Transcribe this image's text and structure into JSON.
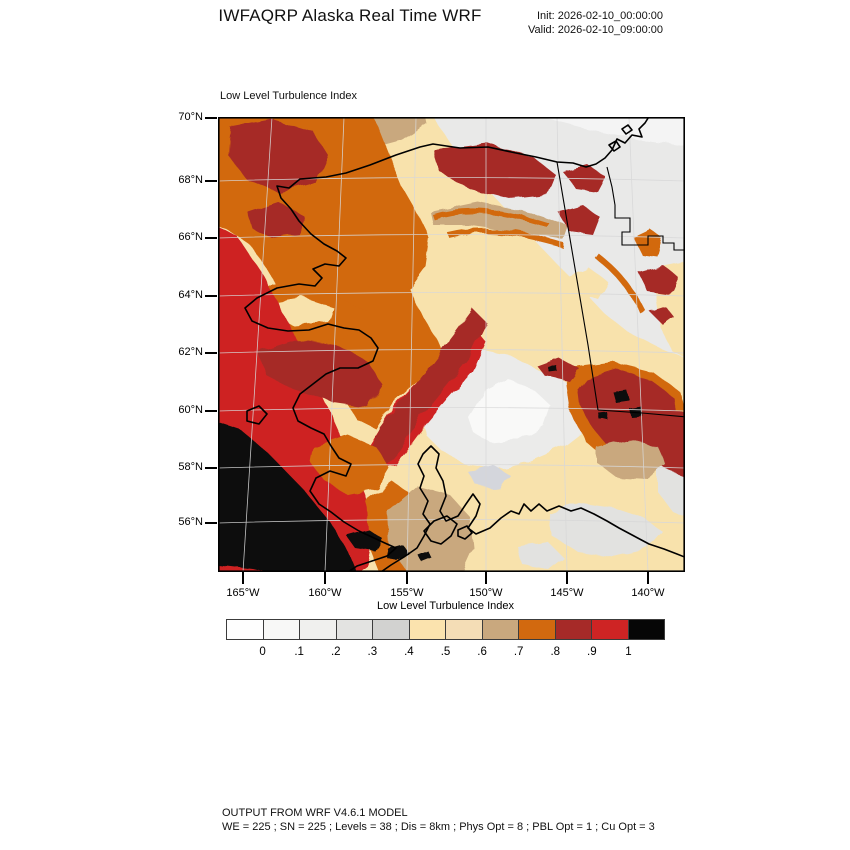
{
  "header": {
    "title": "IWFAQRP Alaska Real Time WRF",
    "init_line": "Init: 2026-02-10_00:00:00",
    "valid_line": "Valid: 2026-02-10_09:00:00"
  },
  "map": {
    "field_label": "Low Level Turbulence Index",
    "lat_tick_labels": [
      "70°N",
      "68°N",
      "66°N",
      "64°N",
      "62°N",
      "60°N",
      "58°N",
      "56°N"
    ],
    "lon_tick_labels": [
      "165°W",
      "160°W",
      "155°W",
      "150°W",
      "145°W",
      "140°W"
    ]
  },
  "colorbar": {
    "title": "Low Level Turbulence Index",
    "tick_labels": [
      "0",
      ".1",
      ".2",
      ".3",
      ".4",
      ".5",
      ".6",
      ".7",
      ".8",
      ".9",
      "1"
    ],
    "cell_colors": [
      "#FEFEFE",
      "#F8F8F7",
      "#F0F0EE",
      "#E3E3E1",
      "#D2D2D0",
      "#FBE3AE",
      "#F4DDB6",
      "#C9A87E",
      "#D2690F",
      "#A62A28",
      "#CE2424",
      "#060606"
    ]
  },
  "footer": {
    "line1": "OUTPUT FROM WRF V4.6.1 MODEL",
    "line2": "WE = 225 ; SN = 225 ; Levels = 38 ; Dis = 8km ; Phys Opt = 8 ; PBL Opt = 1 ; Cu Opt = 3"
  },
  "chart_data": {
    "type": "heatmap",
    "title": "Low Level Turbulence Index",
    "region": "Alaska (WRF model domain)",
    "lat_ticks": [
      "70°N",
      "68°N",
      "66°N",
      "64°N",
      "62°N",
      "60°N",
      "58°N",
      "56°N"
    ],
    "lon_ticks": [
      "165°W",
      "160°W",
      "155°W",
      "150°W",
      "145°W",
      "140°W"
    ],
    "scale_levels": [
      0,
      0.1,
      0.2,
      0.3,
      0.4,
      0.5,
      0.6,
      0.7,
      0.8,
      0.9,
      1
    ],
    "palette": [
      "#FEFEFE",
      "#F8F8F7",
      "#F0F0EE",
      "#E3E3E1",
      "#D2D2D0",
      "#FBE3AE",
      "#F4DDB6",
      "#C9A87E",
      "#D2690F",
      "#A62A28",
      "#CE2424",
      "#060606"
    ],
    "legend_position": "bottom"
  }
}
